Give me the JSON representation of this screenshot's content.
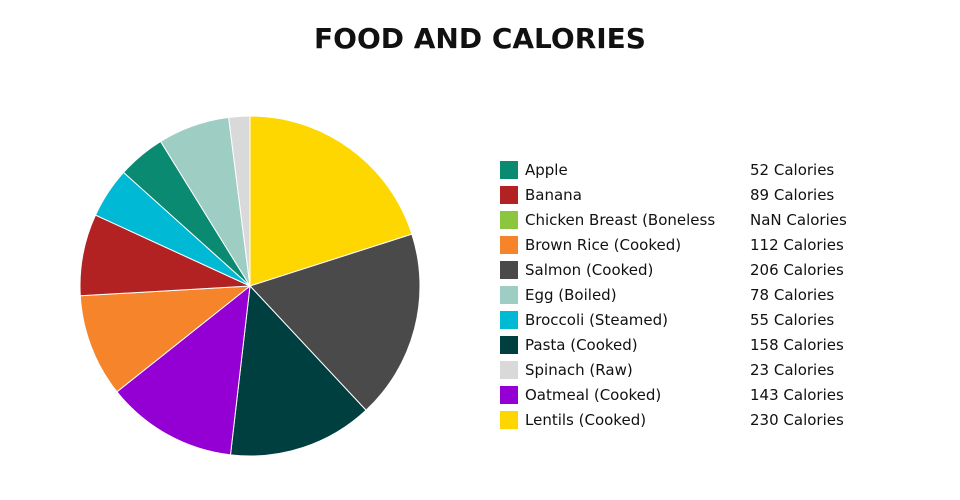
{
  "chart_data": {
    "type": "pie",
    "title": "FOOD AND CALORIES",
    "value_suffix": " Calories",
    "slices": [
      {
        "label": "Apple",
        "value": 52,
        "display": "52",
        "color": "#0b8a72"
      },
      {
        "label": "Banana",
        "value": 89,
        "display": "89",
        "color": "#b22222"
      },
      {
        "label": "Chicken Breast (Boneless",
        "value": null,
        "display": "NaN",
        "color": "#8cc63f"
      },
      {
        "label": "Brown Rice (Cooked)",
        "value": 112,
        "display": "112",
        "color": "#f5842a"
      },
      {
        "label": "Salmon (Cooked)",
        "value": 206,
        "display": "206",
        "color": "#4a4a4a"
      },
      {
        "label": "Egg (Boiled)",
        "value": 78,
        "display": "78",
        "color": "#9ecdc4"
      },
      {
        "label": "Broccoli (Steamed)",
        "value": 55,
        "display": "55",
        "color": "#00b9d4"
      },
      {
        "label": "Pasta (Cooked)",
        "value": 158,
        "display": "158",
        "color": "#003f3f"
      },
      {
        "label": "Spinach (Raw)",
        "value": 23,
        "display": "23",
        "color": "#d9d9d9"
      },
      {
        "label": "Oatmeal (Cooked)",
        "value": 143,
        "display": "143",
        "color": "#9400d3"
      },
      {
        "label": "Lentils (Cooked)",
        "value": 230,
        "display": "230",
        "color": "#ffd700"
      }
    ],
    "legend_position": "right",
    "slice_order_clockwise_from_top": [
      "Lentils (Cooked)",
      "Salmon (Cooked)",
      "Pasta (Cooked)",
      "Oatmeal (Cooked)",
      "Brown Rice (Cooked)",
      "Banana",
      "Broccoli (Steamed)",
      "Apple",
      "Egg (Boiled)",
      "Spinach (Raw)"
    ]
  }
}
